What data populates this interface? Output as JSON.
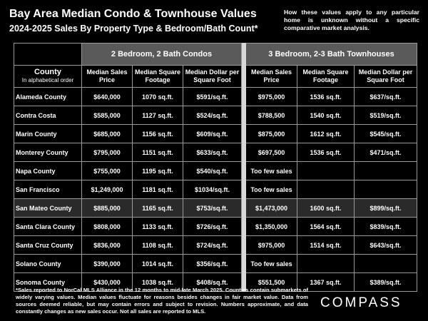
{
  "header": {
    "title": "Bay Area Median Condo & Townhouse Values",
    "subtitle": "2024-2025 Sales By Property Type & Bedroom/Bath Count*",
    "note": "How these values apply to any particular home is unknown without a specific comparative market analysis."
  },
  "chart_data": {
    "type": "table",
    "groups": [
      "2 Bedroom, 2 Bath Condos",
      "3 Bedroom, 2-3 Bath Townhouses"
    ],
    "county_header": "County",
    "county_subheader": "In alphabetical order",
    "columns": [
      "Median Sales Price",
      "Median Square Footage",
      "Median Dollar per Square Foot",
      "Median Sales Price",
      "Median Square Footage",
      "Median Dollar per Square Foot"
    ],
    "rows": [
      {
        "county": "Alameda County",
        "values": [
          "$640,000",
          "1070 sq.ft.",
          "$591/sq.ft.",
          "$975,000",
          "1536 sq.ft.",
          "$637/sq.ft."
        ]
      },
      {
        "county": "Contra Costa",
        "values": [
          "$585,000",
          "1127 sq.ft.",
          "$524/sq.ft.",
          "$788,500",
          "1540 sq.ft.",
          "$519/sq.ft."
        ]
      },
      {
        "county": "Marin County",
        "values": [
          "$685,000",
          "1156 sq.ft.",
          "$609/sq.ft.",
          "$875,000",
          "1612 sq.ft.",
          "$545/sq.ft."
        ]
      },
      {
        "county": "Monterey County",
        "values": [
          "$795,000",
          "1151 sq.ft.",
          "$633/sq.ft.",
          "$697,500",
          "1536 sq.ft.",
          "$471/sq.ft."
        ]
      },
      {
        "county": "Napa County",
        "values": [
          "$755,000",
          "1195 sq.ft.",
          "$540/sq.ft.",
          "Too few sales",
          "",
          ""
        ]
      },
      {
        "county": "San Francisco",
        "values": [
          "$1,249,000",
          "1181 sq.ft.",
          "$1034/sq.ft.",
          "Too few sales",
          "",
          ""
        ]
      },
      {
        "county": "San Mateo County",
        "values": [
          "$885,000",
          "1165 sq.ft.",
          "$753/sq.ft.",
          "$1,473,000",
          "1600 sq.ft.",
          "$899/sq.ft."
        ],
        "highlight": true
      },
      {
        "county": "Santa Clara County",
        "values": [
          "$808,000",
          "1133 sq.ft.",
          "$726/sq.ft.",
          "$1,350,000",
          "1564 sq.ft.",
          "$839/sq.ft."
        ]
      },
      {
        "county": "Santa Cruz County",
        "values": [
          "$836,000",
          "1108 sq.ft.",
          "$724/sq.ft.",
          "$975,000",
          "1514 sq.ft.",
          "$643/sq.ft."
        ]
      },
      {
        "county": "Solano County",
        "values": [
          "$390,000",
          "1014 sq.ft.",
          "$356/sq.ft.",
          "Too few sales",
          "",
          ""
        ]
      },
      {
        "county": "Sonoma County",
        "values": [
          "$430,000",
          "1038 sq.ft.",
          "$408/sq.ft.",
          "$551,500",
          "1367 sq.ft.",
          "$389/sq.ft."
        ]
      }
    ]
  },
  "footer": {
    "text": "*Sales reported to NorCal MLS Alliance in the 12 months to mid-late March 2025. Counties contain submarkets of widely varying values. Median values fluctuate for reasons besides changes in fair market value. Data from sources deemed reliable, but may contain errors and subject to revision. Numbers approximate, and data constantly changes as new sales occur. Not all sales are reported to MLS.",
    "logo": "COMPASS"
  },
  "colors": {
    "background": "#000000",
    "group_header": "#5a5a5a",
    "separator": "#d8d8d8",
    "highlight_row": "#2a2a2a"
  }
}
